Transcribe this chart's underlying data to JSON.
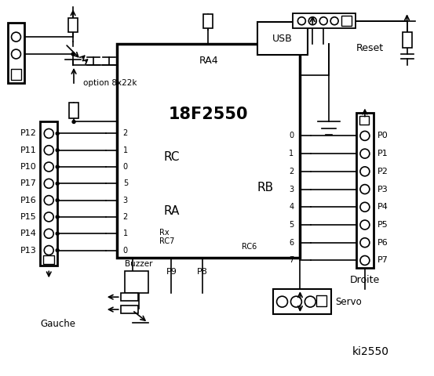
{
  "bg_color": "#ffffff",
  "line_color": "#000000",
  "title": "ki2550",
  "chip_label": "18F2550",
  "rc_label": "RC",
  "ra_label": "RA",
  "rb_label": "RB",
  "ra4_label": "RA4",
  "rx_label": "Rx\nRC7",
  "rc6_label": "RC6",
  "rc_pins": [
    "2",
    "1",
    "0",
    "5",
    "3",
    "2",
    "1",
    "0"
  ],
  "rb_pins": [
    "0",
    "1",
    "2",
    "3",
    "4",
    "5",
    "6",
    "7"
  ],
  "left_labels": [
    "P12",
    "P11",
    "P10",
    "P17",
    "P16",
    "P15",
    "P14",
    "P13"
  ],
  "right_labels": [
    "P0",
    "P1",
    "P2",
    "P3",
    "P4",
    "P5",
    "P6",
    "P7"
  ],
  "option_text": "option 8x22k",
  "gauche_text": "Gauche",
  "droite_text": "Droite",
  "servo_text": "Servo",
  "buzzer_text": "Buzzer",
  "usb_text": "USB",
  "reset_text": "Reset",
  "p8_text": "P8",
  "p9_text": "P9"
}
